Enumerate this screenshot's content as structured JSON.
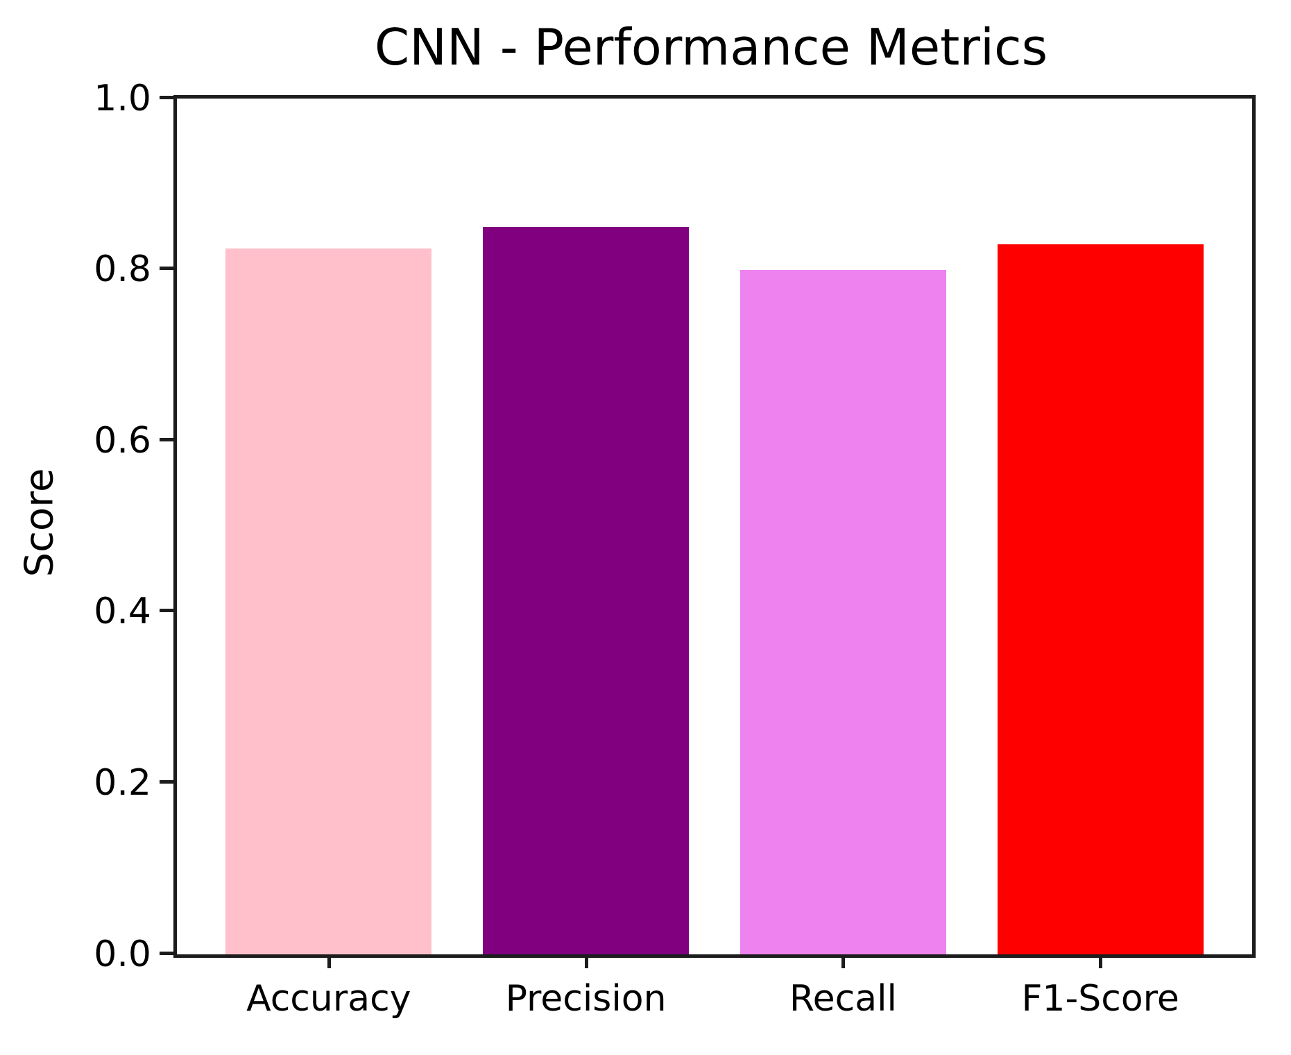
{
  "figure": {
    "background": "#ffffff",
    "spine_color": "#1c1c1c",
    "text_color": "#000000"
  },
  "chart_data": {
    "type": "bar",
    "title": "CNN - Performance Metrics",
    "xlabel": "",
    "ylabel": "Score",
    "categories": [
      "Accuracy",
      "Precision",
      "Recall",
      "F1-Score"
    ],
    "values": [
      0.825,
      0.85,
      0.8,
      0.83
    ],
    "bar_colors": [
      "#FFC0CB",
      "#800080",
      "#EE82EE",
      "#FF0000"
    ],
    "ylim": [
      0.0,
      1.0
    ],
    "yticks": [
      0.0,
      0.2,
      0.4,
      0.6,
      0.8,
      1.0
    ],
    "ytick_labels": [
      "0.0",
      "0.2",
      "0.4",
      "0.6",
      "0.8",
      "1.0"
    ],
    "grid": false,
    "legend": "none",
    "box_spines": true
  }
}
